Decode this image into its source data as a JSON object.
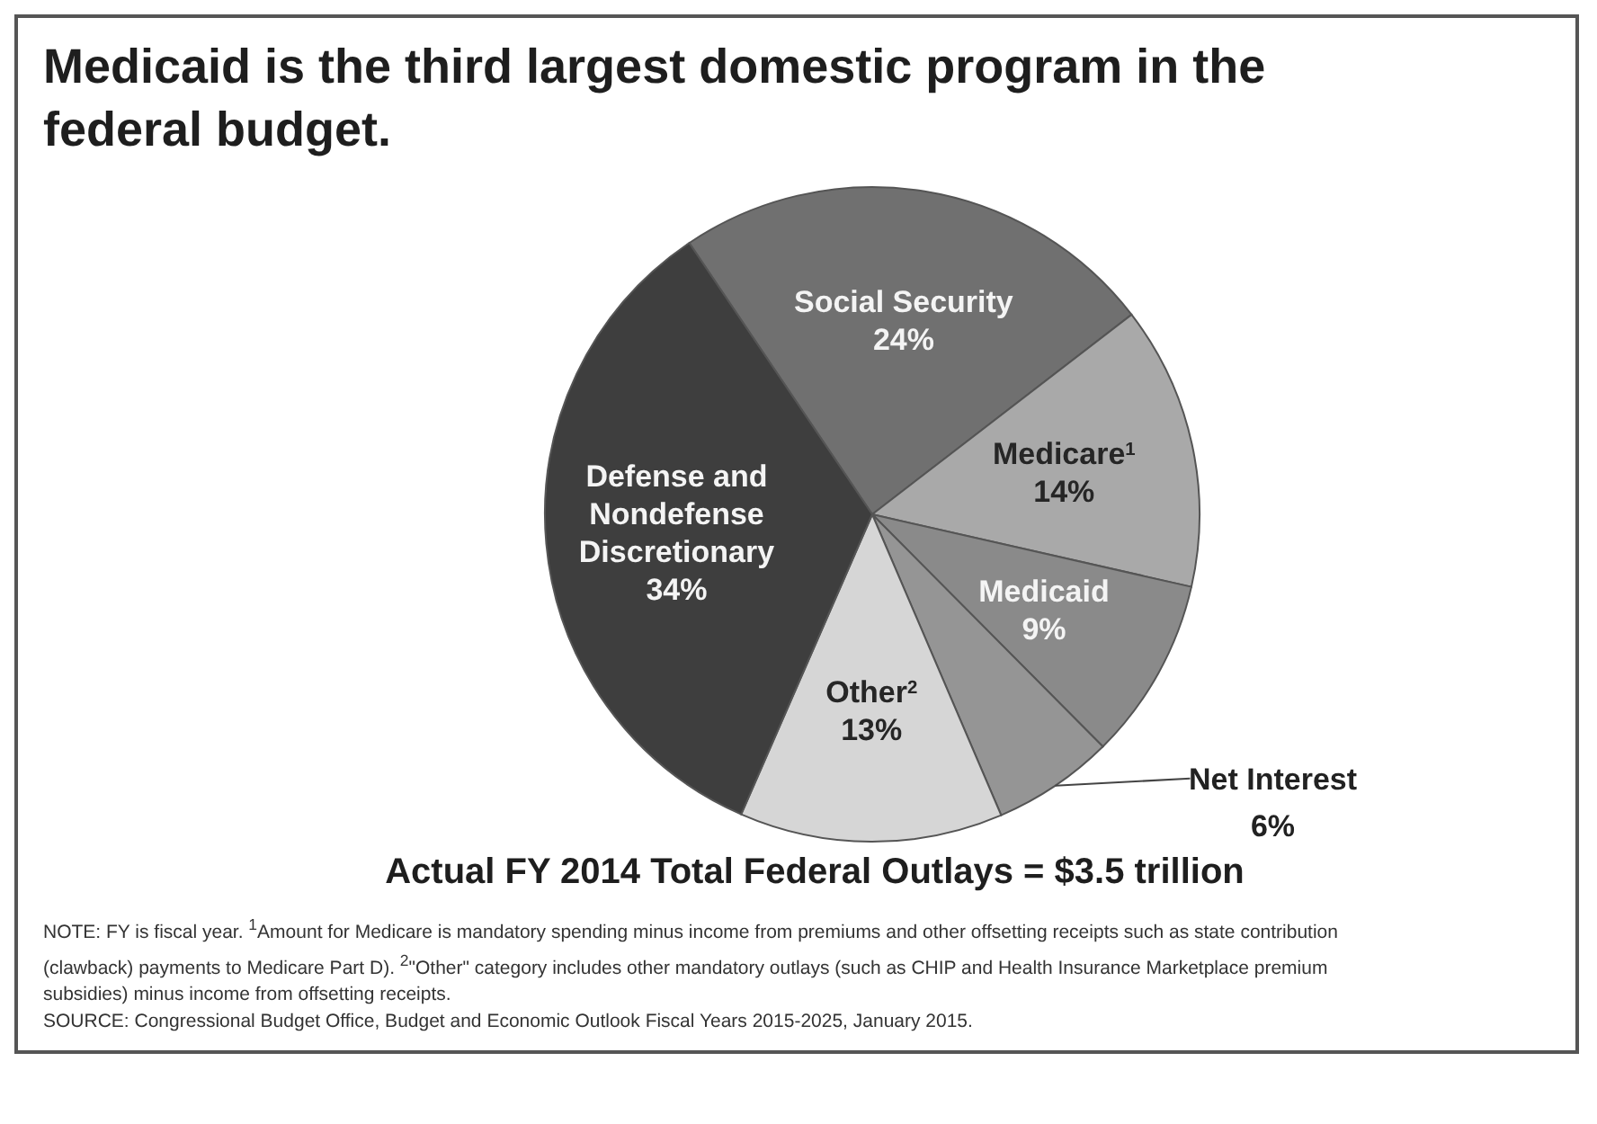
{
  "chart_data": {
    "type": "pie",
    "title": "Medicaid is the third largest domestic program in the federal budget.",
    "subtitle": "Actual FY 2014 Total Federal Outlays = $3.5 trillion",
    "categories": [
      "Social Security",
      "Medicare$^{1}$",
      "Medicaid",
      "Net Interest",
      "Other$^{2}$",
      "Defense and Nondefense Discretionary"
    ],
    "values": [
      24,
      14,
      9,
      6,
      13,
      34
    ],
    "value_labels": [
      "24%",
      "14%",
      "9%",
      "6%",
      "13%",
      "34%"
    ],
    "colors": [
      "#707070",
      "#a9a9a9",
      "#8a8a8a",
      "#959595",
      "#d6d6d6",
      "#3e3e3e"
    ],
    "annotations": [
      "NOTE: FY is fiscal year. $^{1}$Amount for Medicare is mandatory spending minus income from premiums and other offsetting receipts such as state contribution (clawback) payments to Medicare Part D). $^{2}$\"Other\" category includes other mandatory outlays (such as CHIP and Health Insurance Marketplace premium subsidies) minus income from offsetting receipts.",
      "SOURCE: Congressional Budget Office, Budget and Economic Outlook Fiscal Years 2015-2025, January 2015."
    ]
  }
}
